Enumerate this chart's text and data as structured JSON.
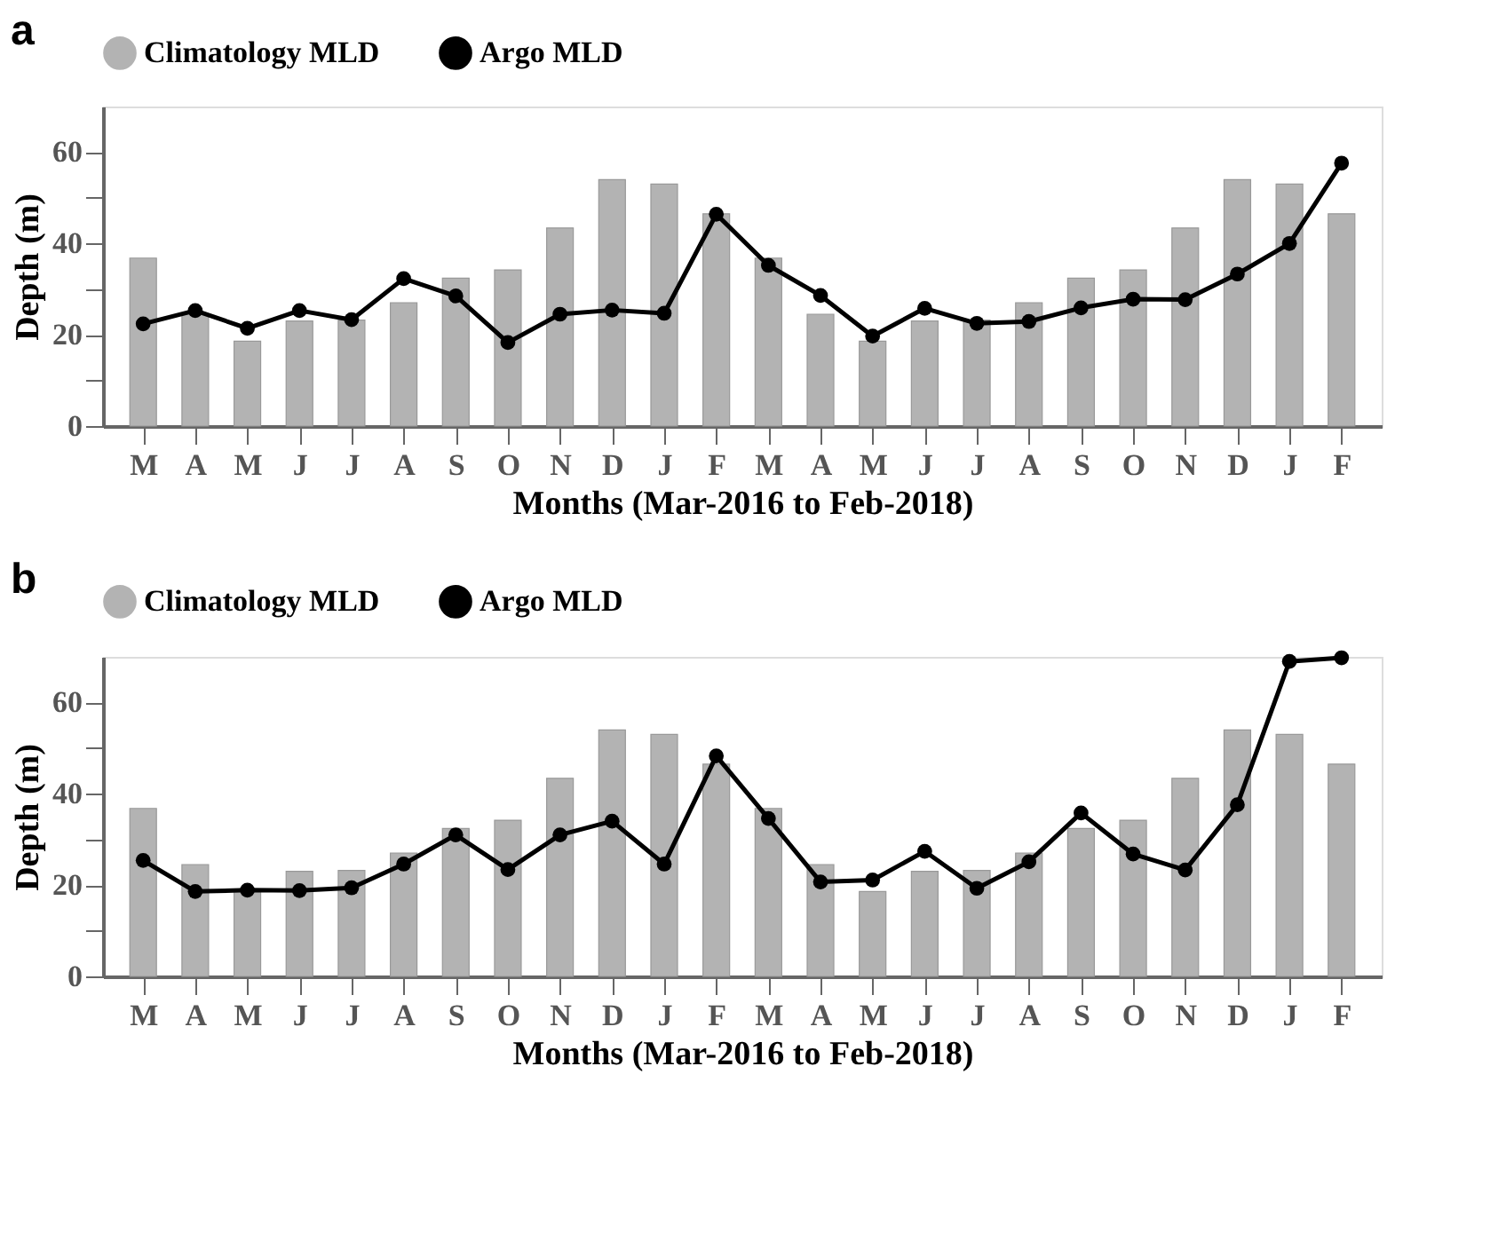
{
  "chart_data": [
    {
      "type": "bar",
      "title": "a",
      "xlabel": "Months (Mar-2016 to Feb-2018)",
      "ylabel": "Depth (m)",
      "categories": [
        "M",
        "A",
        "M",
        "J",
        "J",
        "A",
        "S",
        "O",
        "N",
        "D",
        "J",
        "F",
        "M",
        "A",
        "M",
        "J",
        "J",
        "A",
        "S",
        "O",
        "N",
        "D",
        "J",
        "F"
      ],
      "series": [
        {
          "name": "Climatology MLD",
          "color": "#b3b3b3",
          "values": [
            36.8,
            24.5,
            18.6,
            23,
            23.2,
            27,
            32.4,
            34.2,
            43.4,
            54,
            53,
            46.5,
            36.8,
            24.5,
            18.6,
            23,
            23.2,
            27,
            32.4,
            34.2,
            43.4,
            54,
            53,
            46.5
          ]
        },
        {
          "name": "Argo MLD",
          "type": "line",
          "color": "#000000",
          "marker": "circle",
          "line_style": "solid",
          "values": [
            22.4,
            25.3,
            21.4,
            25.3,
            23.3,
            32.3,
            28.5,
            18.3,
            24.5,
            25.4,
            24.7,
            46.4,
            35.2,
            28.6,
            19.7,
            25.8,
            22.5,
            22.9,
            25.9,
            27.8,
            27.7,
            33.3,
            40,
            57.6
          ]
        }
      ],
      "ylim": [
        0,
        70
      ],
      "yticks": [
        0,
        {
          "value": 10,
          "label": null
        },
        20,
        {
          "value": 30,
          "label": null
        },
        40,
        {
          "value": 50,
          "label": null
        },
        60
      ],
      "grid": false,
      "legend": "top"
    },
    {
      "type": "bar",
      "title": "b",
      "xlabel": "Months (Mar-2016 to Feb-2018)",
      "ylabel": "Depth (m)",
      "categories": [
        "M",
        "A",
        "M",
        "J",
        "J",
        "A",
        "S",
        "O",
        "N",
        "D",
        "J",
        "F",
        "M",
        "A",
        "M",
        "J",
        "J",
        "A",
        "S",
        "O",
        "N",
        "D",
        "J",
        "F"
      ],
      "series": [
        {
          "name": "Climatology MLD",
          "color": "#b3b3b3",
          "values": [
            36.8,
            24.5,
            18.6,
            23,
            23.2,
            27,
            32.4,
            34.2,
            43.4,
            54,
            53,
            46.5,
            36.8,
            24.5,
            18.6,
            23,
            23.2,
            27,
            32.4,
            34.2,
            43.4,
            54,
            53,
            46.5
          ]
        },
        {
          "name": "Argo MLD",
          "type": "line",
          "color": "#000000",
          "marker": "circle",
          "line_style": "solid",
          "values": [
            25.4,
            18.6,
            18.9,
            18.8,
            19.4,
            24.6,
            31,
            23.4,
            31,
            34,
            24.6,
            48.3,
            34.6,
            20.7,
            21.1,
            27.4,
            19.3,
            25.1,
            35.8,
            26.8,
            23.3,
            37.6,
            69,
            69.8
          ]
        }
      ],
      "ylim": [
        0,
        70
      ],
      "yticks": [
        0,
        {
          "value": 10,
          "label": null
        },
        20,
        {
          "value": 30,
          "label": null
        },
        40,
        {
          "value": 50,
          "label": null
        },
        60
      ],
      "grid": false,
      "legend": "top"
    }
  ]
}
